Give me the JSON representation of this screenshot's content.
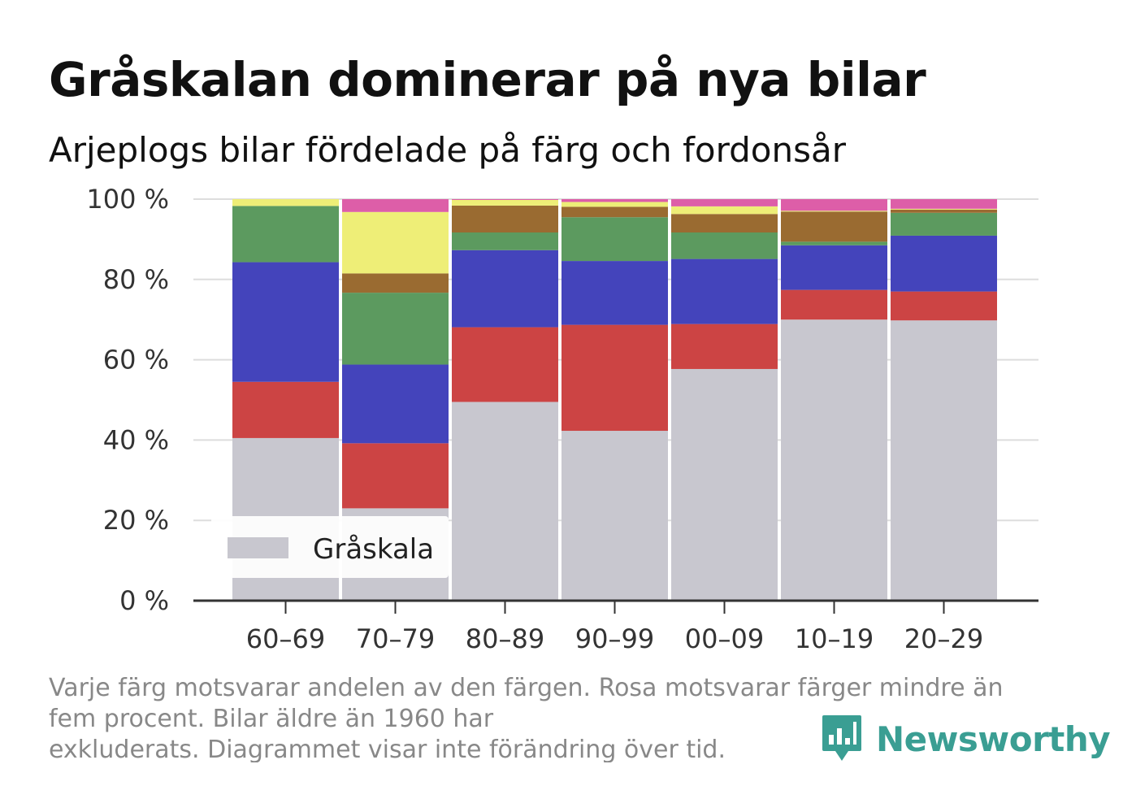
{
  "chart_data": {
    "type": "bar",
    "stacked": true,
    "normalized": true,
    "title": "Gråskalan dominerar på nya bilar",
    "subtitle": "Arjeplogs bilar fördelade på färg och fordonsår",
    "xlabel": "",
    "ylabel": "",
    "ylim": [
      0,
      100
    ],
    "y_ticks": [
      "0 %",
      "20 %",
      "40 %",
      "60 %",
      "80 %",
      "100 %"
    ],
    "y_tick_values": [
      0,
      20,
      40,
      60,
      80,
      100
    ],
    "grid": true,
    "categories": [
      "60–69",
      "70–79",
      "80–89",
      "90–99",
      "00–09",
      "10–19",
      "20–29"
    ],
    "series": [
      {
        "name": "Gråskala",
        "color": "#c8c7cf",
        "values": [
          40.5,
          23.0,
          49.5,
          42.3,
          57.7,
          70.0,
          69.8
        ]
      },
      {
        "color": "#cc4444",
        "values": [
          14.0,
          16.2,
          18.6,
          26.4,
          11.2,
          7.4,
          7.2
        ]
      },
      {
        "color": "#4444bb",
        "values": [
          29.8,
          19.6,
          19.2,
          15.9,
          16.2,
          11.1,
          13.9
        ]
      },
      {
        "color": "#5c9a5f",
        "values": [
          14.0,
          17.9,
          4.4,
          10.9,
          6.6,
          0.9,
          5.7
        ]
      },
      {
        "color": "#9a6b31",
        "values": [
          0.0,
          4.8,
          6.7,
          2.6,
          4.6,
          7.5,
          0.8
        ]
      },
      {
        "color": "#eeee77",
        "values": [
          1.7,
          15.3,
          1.4,
          1.2,
          1.9,
          0.2,
          0.2
        ]
      },
      {
        "color": "#dd5ea8",
        "values": [
          0.0,
          3.2,
          0.2,
          0.7,
          1.8,
          2.9,
          2.4
        ]
      }
    ],
    "legend": {
      "placement": "bottom-left",
      "entries": [
        "Gråskala"
      ]
    }
  },
  "footnote": {
    "lines": [
      "Varje färg motsvarar andelen av den färgen. Rosa motsvarar färger mindre än",
      "fem procent. Bilar äldre än 1960 har",
      "exkluderats. Diagrammet visar inte förändring över tid."
    ]
  },
  "logo": {
    "text": "Newsworthy",
    "icon": "bar-chart-speech-bubble-icon",
    "color": "#3a9e93"
  },
  "colors": {
    "axis": "#333333",
    "grid": "#dddddd",
    "background": "#ffffff"
  }
}
